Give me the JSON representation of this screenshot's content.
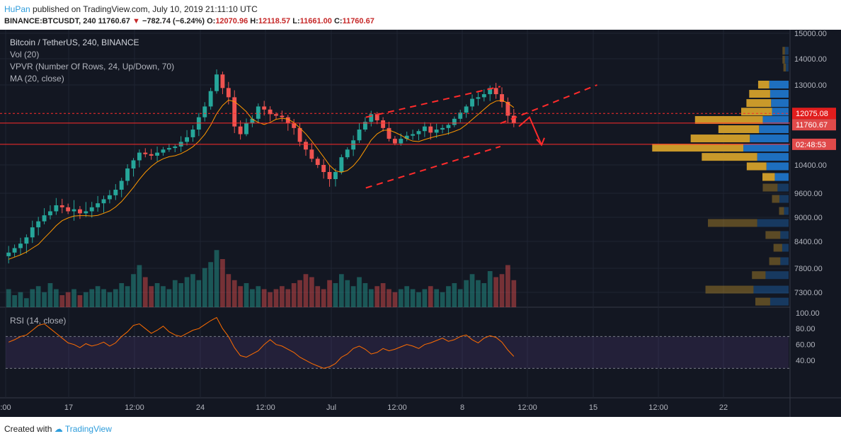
{
  "header": {
    "author": "HuPan",
    "published_text": "published on TradingView.com, July 10, 2019 21:11:10 UTC",
    "symbol": "BINANCE:BTCUSDT, 240",
    "last": "11760.67",
    "change": "−782.74 (−6.24%)",
    "o_label": "O:",
    "o_val": "12070.96",
    "h_label": "H:",
    "h_val": "12118.57",
    "l_label": "L:",
    "l_val": "11661.00",
    "c_label": "C:",
    "c_val": "11760.67"
  },
  "legend": {
    "title": "Bitcoin / TetherUS, 240, BINANCE",
    "vol": "Vol (20)",
    "vpvr": "VPVR (Number Of Rows, 24, Up/Down, 70)",
    "ma": "MA (20, close)",
    "rsi": "RSI (14, close)"
  },
  "price_axis": {
    "ticks": [
      "15000.00",
      "14000.00",
      "13000.00",
      "12075.08",
      "11760.67",
      "02:48:53",
      "10400.00",
      "9600.00",
      "9000.00",
      "8400.00",
      "7800.00",
      "7300.00"
    ],
    "badge_resistance": "12075.08",
    "badge_last": "11760.67",
    "badge_timer": "02:48:53"
  },
  "rsi_axis": {
    "ticks": [
      "100.00",
      "80.00",
      "60.00",
      "40.00"
    ]
  },
  "time_axis": {
    "ticks": [
      ":00",
      "17",
      "12:00",
      "24",
      "12:00",
      "Jul",
      "12:00",
      "8",
      "12:00",
      "15",
      "12:00",
      "22"
    ]
  },
  "footer": {
    "created_with": "Created with",
    "brand": "TradingView"
  },
  "colors": {
    "background": "#131722",
    "up": "#26a69a",
    "down": "#ef5350",
    "ma": "#ff9800",
    "rsi": "#ff6d00",
    "drawing": "#ff2b2b",
    "vpvr_up": "#1e6fbf",
    "vpvr_down": "#c9992a"
  },
  "chart_data": {
    "type": "candlestick",
    "title": "Bitcoin / TetherUS, 240, BINANCE",
    "ylim": [
      7000,
      15200
    ],
    "close_path": [
      8150,
      8250,
      8350,
      8500,
      8750,
      8900,
      9050,
      9150,
      9300,
      9250,
      9150,
      9200,
      9100,
      9150,
      9250,
      9350,
      9450,
      9550,
      9700,
      9950,
      10300,
      10550,
      10800,
      10750,
      10700,
      10800,
      10900,
      10950,
      11000,
      11150,
      11300,
      11550,
      11950,
      12300,
      12800,
      13400,
      12900,
      12600,
      11650,
      11400,
      11750,
      11900,
      12300,
      12200,
      12050,
      12000,
      11950,
      11750,
      11600,
      11150,
      10900,
      10600,
      10400,
      10200,
      10000,
      10200,
      10650,
      10900,
      11200,
      11550,
      11800,
      12050,
      11850,
      11600,
      11250,
      11100,
      11250,
      11350,
      11400,
      11500,
      11650,
      11450,
      11550,
      11600,
      11700,
      11900,
      12100,
      12300,
      12550,
      12600,
      12700,
      12900,
      12700,
      12450,
      12000,
      11760
    ],
    "volume_relative": [
      0.3,
      0.2,
      0.25,
      0.15,
      0.3,
      0.35,
      0.25,
      0.4,
      0.3,
      0.2,
      0.25,
      0.3,
      0.2,
      0.25,
      0.3,
      0.35,
      0.3,
      0.25,
      0.3,
      0.4,
      0.35,
      0.55,
      0.7,
      0.5,
      0.35,
      0.4,
      0.35,
      0.3,
      0.45,
      0.4,
      0.5,
      0.55,
      0.45,
      0.65,
      0.75,
      0.95,
      0.8,
      0.55,
      0.45,
      0.35,
      0.4,
      0.3,
      0.35,
      0.3,
      0.25,
      0.3,
      0.35,
      0.3,
      0.4,
      0.45,
      0.55,
      0.5,
      0.35,
      0.3,
      0.45,
      0.4,
      0.55,
      0.45,
      0.35,
      0.5,
      0.4,
      0.3,
      0.35,
      0.4,
      0.3,
      0.25,
      0.3,
      0.35,
      0.3,
      0.25,
      0.3,
      0.35,
      0.3,
      0.25,
      0.35,
      0.4,
      0.3,
      0.45,
      0.55,
      0.45,
      0.4,
      0.6,
      0.5,
      0.55,
      0.7,
      0.45
    ],
    "rsi_path": [
      63,
      66,
      70,
      72,
      78,
      84,
      86,
      80,
      74,
      68,
      62,
      60,
      56,
      61,
      58,
      60,
      63,
      58,
      62,
      70,
      76,
      84,
      86,
      80,
      74,
      78,
      83,
      76,
      72,
      70,
      74,
      78,
      80,
      85,
      90,
      94,
      80,
      70,
      56,
      46,
      44,
      48,
      52,
      60,
      66,
      60,
      58,
      54,
      50,
      44,
      40,
      36,
      33,
      30,
      32,
      36,
      44,
      48,
      55,
      58,
      54,
      48,
      50,
      55,
      52,
      54,
      57,
      60,
      58,
      55,
      60,
      62,
      65,
      68,
      64,
      66,
      70,
      72,
      66,
      62,
      68,
      71,
      69,
      63,
      53,
      45
    ],
    "vpvr_rows": [
      {
        "price": 14300,
        "up": 0.04,
        "down": 0.02
      },
      {
        "price": 13950,
        "up": 0.04,
        "down": 0.02
      },
      {
        "price": 13650,
        "up": 0.03,
        "down": 0.02
      },
      {
        "price": 13000,
        "up": 0.21,
        "down": 0.09
      },
      {
        "price": 12700,
        "up": 0.2,
        "down": 0.17
      },
      {
        "price": 12400,
        "up": 0.19,
        "down": 0.2
      },
      {
        "price": 12120,
        "up": 0.18,
        "down": 0.25
      },
      {
        "price": 11850,
        "up": 0.28,
        "down": 0.55
      },
      {
        "price": 11550,
        "up": 0.32,
        "down": 0.33
      },
      {
        "price": 11250,
        "up": 0.42,
        "down": 0.48
      },
      {
        "price": 10950,
        "up": 0.49,
        "down": 0.74
      },
      {
        "price": 10650,
        "up": 0.34,
        "down": 0.45
      },
      {
        "price": 10350,
        "up": 0.24,
        "down": 0.16
      },
      {
        "price": 10050,
        "up": 0.15,
        "down": 0.1
      },
      {
        "price": 9750,
        "up": 0.12,
        "down": 0.12
      },
      {
        "price": 9450,
        "up": 0.1,
        "down": 0.06
      },
      {
        "price": 9150,
        "up": 0.05,
        "down": 0.04
      },
      {
        "price": 8850,
        "up": 0.34,
        "down": 0.4
      },
      {
        "price": 8550,
        "up": 0.09,
        "down": 0.12
      },
      {
        "price": 8250,
        "up": 0.07,
        "down": 0.07
      },
      {
        "price": 7950,
        "up": 0.09,
        "down": 0.09
      },
      {
        "price": 7650,
        "up": 0.25,
        "down": 0.11
      },
      {
        "price": 7350,
        "up": 0.38,
        "down": 0.39
      },
      {
        "price": 7100,
        "up": 0.2,
        "down": 0.12
      }
    ],
    "levels": [
      12075.08,
      11760.67,
      11070
    ],
    "channel_upper": [
      [
        0.435,
        11950
      ],
      [
        0.595,
        12950
      ]
    ],
    "channel_lower": [
      [
        0.435,
        9750
      ],
      [
        0.595,
        11000
      ]
    ],
    "projection_upper": [
      [
        0.595,
        11750
      ],
      [
        0.71,
        13000
      ]
    ],
    "rsi_bands": [
      30,
      70
    ]
  }
}
